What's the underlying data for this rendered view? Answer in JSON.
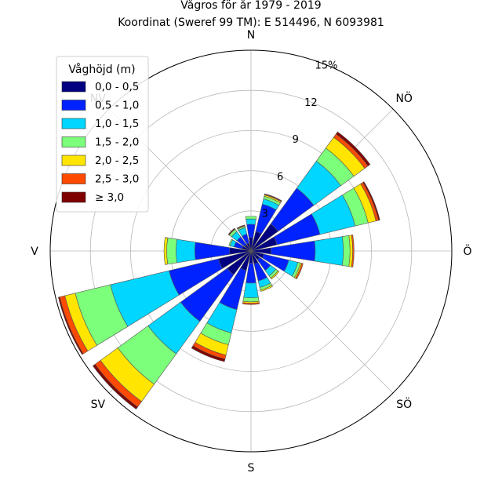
{
  "chart_data": {
    "type": "windrose",
    "title_line1": "Vågros för år 1979 - 2019",
    "title_line2": "Koordinat (Sweref 99 TM): E 514496, N 6093981",
    "direction_labels": [
      "N",
      "NÖ",
      "Ö",
      "SÖ",
      "S",
      "SV",
      "V",
      "NV"
    ],
    "radial_ticks": [
      3,
      6,
      9,
      12,
      15
    ],
    "radial_tick_labels": [
      "3",
      "6",
      "9",
      "12",
      "15%"
    ],
    "rmax": 15,
    "grid": true,
    "legend": {
      "title": "Våghöjd (m)",
      "placement": "top-left",
      "entries": [
        {
          "label": "0,0 - 0,5",
          "color": "#000080"
        },
        {
          "label": "0,5 - 1,0",
          "color": "#0022ff"
        },
        {
          "label": "1,0 - 1,5",
          "color": "#00d6ff"
        },
        {
          "label": "1,5 - 2,0",
          "color": "#7cff7a"
        },
        {
          "label": "2,0 - 2,5",
          "color": "#ffe500"
        },
        {
          "label": "2,5 - 3,0",
          "color": "#ff4a00"
        },
        {
          "label": "≥ 3,0",
          "color": "#800000"
        }
      ]
    },
    "sector_width_deg": 22.5,
    "directions_deg": [
      0,
      22.5,
      45,
      67.5,
      90,
      112.5,
      135,
      157.5,
      180,
      202.5,
      225,
      247.5,
      270,
      292.5,
      315,
      337.5
    ],
    "cumulative_percent": [
      [
        1.0,
        2.0,
        2.4,
        2.6,
        2.6,
        2.6,
        2.6
      ],
      [
        1.5,
        3.6,
        4.0,
        4.2,
        4.3,
        4.35,
        4.4
      ],
      [
        2.5,
        5.8,
        8.3,
        9.5,
        10.5,
        10.8,
        11.0
      ],
      [
        2.0,
        5.3,
        8.0,
        9.0,
        9.6,
        9.8,
        9.9
      ],
      [
        1.5,
        4.8,
        6.9,
        7.4,
        7.6,
        7.7,
        7.7
      ],
      [
        1.0,
        2.9,
        3.6,
        3.8,
        3.9,
        4.0,
        4.0
      ],
      [
        0.8,
        1.8,
        2.3,
        2.5,
        2.6,
        2.6,
        2.6
      ],
      [
        1.0,
        2.3,
        2.8,
        3.0,
        3.1,
        3.1,
        3.1
      ],
      [
        0.9,
        2.4,
        3.5,
        3.8,
        3.9,
        4.0,
        4.0
      ],
      [
        1.5,
        4.5,
        6.3,
        7.2,
        8.0,
        8.3,
        8.5
      ],
      [
        2.2,
        6.5,
        9.5,
        12.3,
        13.9,
        14.4,
        14.6
      ],
      [
        2.5,
        6.3,
        10.8,
        13.5,
        14.3,
        14.7,
        14.8
      ],
      [
        1.6,
        4.2,
        5.6,
        6.3,
        6.5,
        6.5,
        6.5
      ],
      [
        0.7,
        1.3,
        1.6,
        1.7,
        1.7,
        1.7,
        1.7
      ],
      [
        0.6,
        1.3,
        1.8,
        2.0,
        2.05,
        2.05,
        2.1
      ],
      [
        0.6,
        1.3,
        1.8,
        1.9,
        1.95,
        1.95,
        2.0
      ]
    ]
  }
}
